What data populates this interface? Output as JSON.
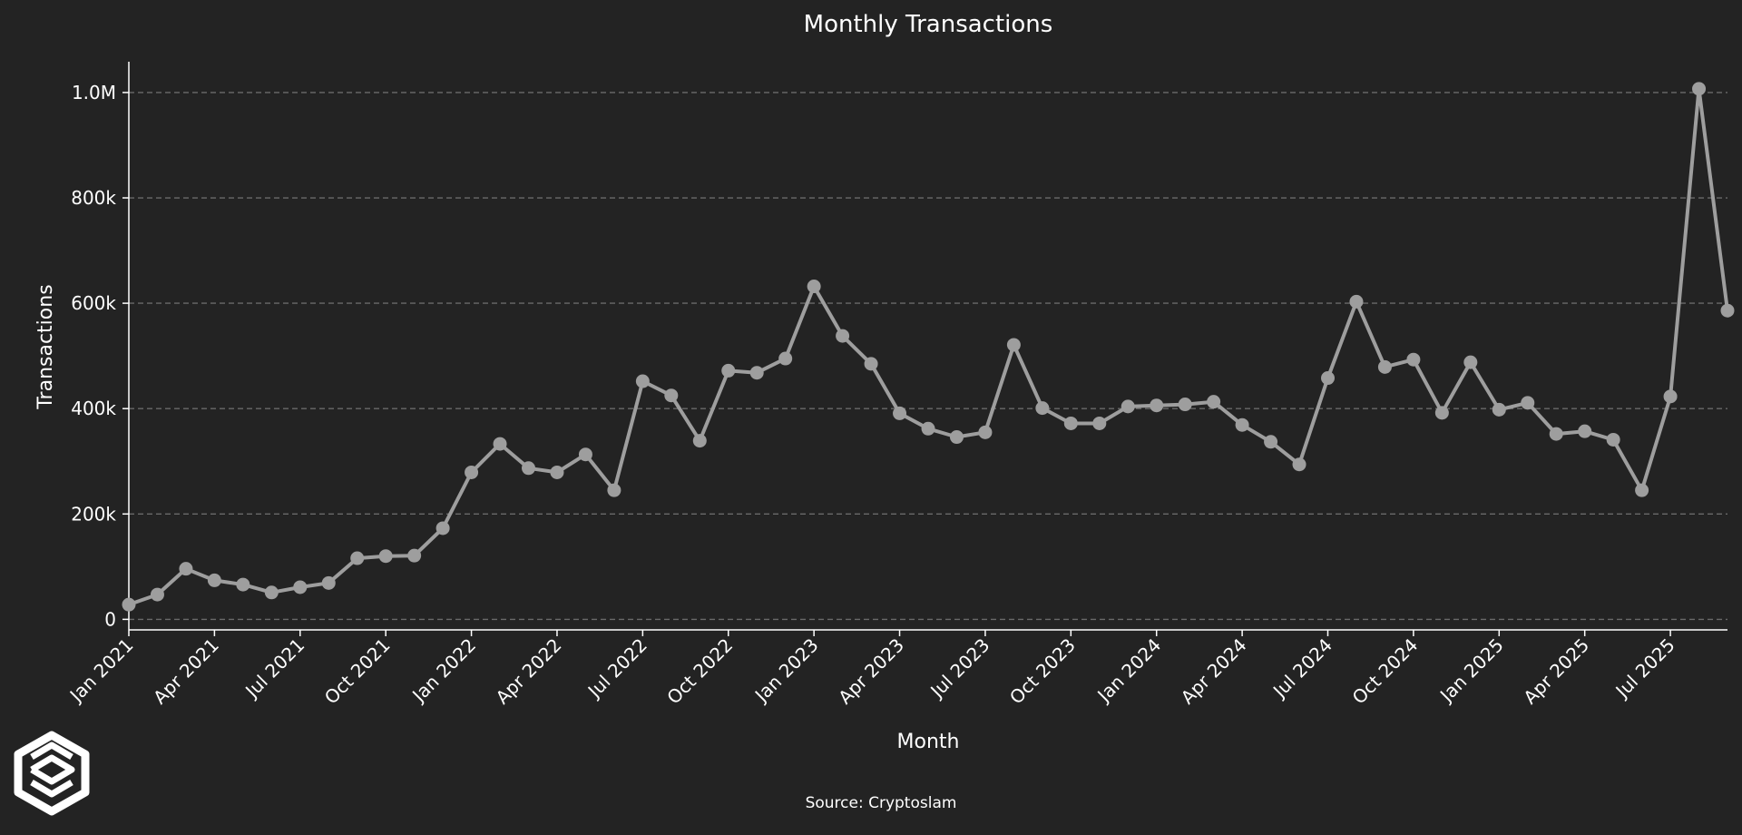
{
  "chart_data": {
    "type": "line",
    "title": "Monthly Transactions",
    "xlabel": "Month",
    "ylabel": "Transactions",
    "source": "Source: Cryptoslam",
    "grid": {
      "y": true,
      "x": false,
      "style": "dashed"
    },
    "legend": "none",
    "colors": {
      "background": "#232323",
      "line": "#9e9e9e",
      "marker": "#9e9e9e",
      "grid": "#6a6a6a",
      "text": "#ffffff"
    },
    "ylim": [
      -20000,
      1055000
    ],
    "xlim": [
      "2021-01",
      "2025-09"
    ],
    "y_ticks": [
      {
        "value": 0,
        "label": "0"
      },
      {
        "value": 200000,
        "label": "200k"
      },
      {
        "value": 400000,
        "label": "400k"
      },
      {
        "value": 600000,
        "label": "600k"
      },
      {
        "value": 800000,
        "label": "800k"
      },
      {
        "value": 1000000,
        "label": "1.0M"
      }
    ],
    "x_ticks": [
      {
        "value": "2021-01",
        "label": "Jan 2021"
      },
      {
        "value": "2021-04",
        "label": "Apr 2021"
      },
      {
        "value": "2021-07",
        "label": "Jul 2021"
      },
      {
        "value": "2021-10",
        "label": "Oct 2021"
      },
      {
        "value": "2022-01",
        "label": "Jan 2022"
      },
      {
        "value": "2022-04",
        "label": "Apr 2022"
      },
      {
        "value": "2022-07",
        "label": "Jul 2022"
      },
      {
        "value": "2022-10",
        "label": "Oct 2022"
      },
      {
        "value": "2023-01",
        "label": "Jan 2023"
      },
      {
        "value": "2023-04",
        "label": "Apr 2023"
      },
      {
        "value": "2023-07",
        "label": "Jul 2023"
      },
      {
        "value": "2023-10",
        "label": "Oct 2023"
      },
      {
        "value": "2024-01",
        "label": "Jan 2024"
      },
      {
        "value": "2024-04",
        "label": "Apr 2024"
      },
      {
        "value": "2024-07",
        "label": "Jul 2024"
      },
      {
        "value": "2024-10",
        "label": "Oct 2024"
      },
      {
        "value": "2025-01",
        "label": "Jan 2025"
      },
      {
        "value": "2025-04",
        "label": "Apr 2025"
      },
      {
        "value": "2025-07",
        "label": "Jul 2025"
      }
    ],
    "x": [
      "2021-01",
      "2021-02",
      "2021-03",
      "2021-04",
      "2021-05",
      "2021-06",
      "2021-07",
      "2021-08",
      "2021-09",
      "2021-10",
      "2021-11",
      "2021-12",
      "2022-01",
      "2022-02",
      "2022-03",
      "2022-04",
      "2022-05",
      "2022-06",
      "2022-07",
      "2022-08",
      "2022-09",
      "2022-10",
      "2022-11",
      "2022-12",
      "2023-01",
      "2023-02",
      "2023-03",
      "2023-04",
      "2023-05",
      "2023-06",
      "2023-07",
      "2023-08",
      "2023-09",
      "2023-10",
      "2023-11",
      "2023-12",
      "2024-01",
      "2024-02",
      "2024-03",
      "2024-04",
      "2024-05",
      "2024-06",
      "2024-07",
      "2024-08",
      "2024-09",
      "2024-10",
      "2024-11",
      "2024-12",
      "2025-01",
      "2025-02",
      "2025-03",
      "2025-04",
      "2025-05",
      "2025-06",
      "2025-07",
      "2025-08",
      "2025-09"
    ],
    "series": [
      {
        "values": [
          28000,
          47000,
          96000,
          74000,
          66000,
          51000,
          61000,
          69000,
          116000,
          120000,
          121000,
          173000,
          279000,
          333000,
          287000,
          279000,
          313000,
          245000,
          452000,
          425000,
          339000,
          472000,
          468000,
          495000,
          632000,
          538000,
          485000,
          391000,
          362000,
          346000,
          355000,
          521000,
          401000,
          372000,
          372000,
          404000,
          406000,
          408000,
          413000,
          369000,
          337000,
          294000,
          458000,
          603000,
          479000,
          493000,
          392000,
          488000,
          398000,
          411000,
          352000,
          357000,
          341000,
          245000,
          423000,
          1007000,
          586000
        ]
      }
    ]
  }
}
